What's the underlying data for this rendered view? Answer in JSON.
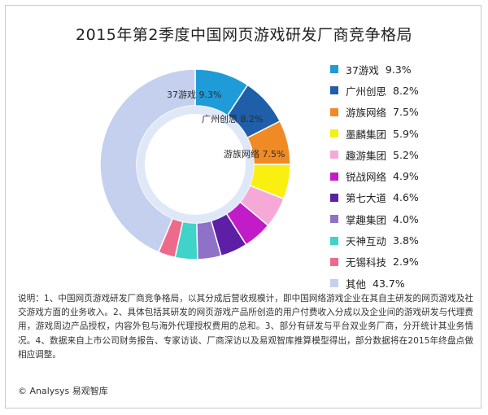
{
  "chart_data": {
    "type": "pie",
    "title": "2015年第2季度中国网页游戏研发厂商竞争格局",
    "categories": [
      "37游戏",
      "广州创思",
      "游族网络",
      "墨麟集团",
      "趣游集团",
      "锐战网络",
      "第七大道",
      "掌趣集团",
      "天神互动",
      "无锡科技",
      "其他"
    ],
    "values": [
      9.3,
      8.2,
      7.5,
      5.9,
      5.2,
      4.9,
      4.6,
      4.0,
      3.8,
      2.9,
      43.7
    ],
    "value_labels": [
      "9.3%",
      "8.2%",
      "7.5%",
      "5.9%",
      "5.2%",
      "4.9%",
      "4.6%",
      "4.0%",
      "3.8%",
      "2.9%",
      "43.7%"
    ],
    "colors": [
      "#1f9bd8",
      "#1f5ea8",
      "#f08a24",
      "#f9ef11",
      "#f6a9d6",
      "#c21cc9",
      "#5d1fa5",
      "#8f72c8",
      "#3fd3c9",
      "#ee6a8a",
      "#c4d0ee"
    ],
    "slice_labels": [
      {
        "name": "37游戏",
        "value": "9.3%"
      },
      {
        "name": "广州创思",
        "value": "8.2%"
      },
      {
        "name": "游族网络",
        "value": "7.5%"
      }
    ],
    "legend_position": "right",
    "donut": true
  },
  "note": "说明：1、中国网页游戏研发厂商竞争格局，以其分成后营收规模计，即中国网络游戏企业在其自主研发的网页游戏及社交游戏方面的业务收入。2、具体包括其研发的网页游戏产品所创造的用户付费收入分成以及企业间的游戏研发与代理费用，游戏周边产品授权，内容外包与海外代理授权费用的总和。3、部分有研发与平台双业务厂商，分开统计其业务情况。4、数据来自上市公司财务报告、专家访谈、厂商深访以及易观智库推算模型得出，部分数据将在2015年终盘点做相应调整。",
  "source": "© Analysys 易观智库"
}
